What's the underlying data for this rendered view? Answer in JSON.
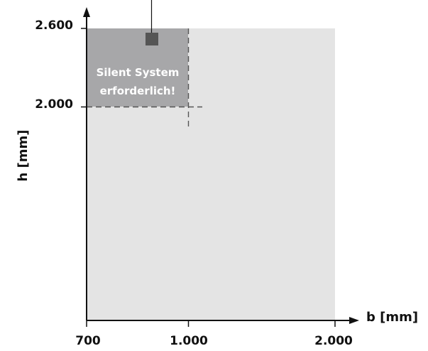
{
  "diagram": {
    "x_axis": {
      "label": "b [mm]",
      "ticks": [
        {
          "value": 700,
          "label": "700"
        },
        {
          "value": 1000,
          "label": "1.000"
        },
        {
          "value": 2000,
          "label": "2.000"
        }
      ]
    },
    "y_axis": {
      "label": "h [mm]",
      "ticks": [
        {
          "value": 2000,
          "label": "2.000"
        },
        {
          "value": 2600,
          "label": "2.600"
        }
      ]
    },
    "regions": {
      "full_range": {
        "b_max": 2000,
        "h_max": 2600,
        "color": "#e4e4e4"
      },
      "silent_zone": {
        "b_max": 1000,
        "h_min": 2000,
        "h_max": 2600,
        "color": "#a7a7a9"
      }
    },
    "note_lines": [
      "Silent System",
      "erforderlich!"
    ],
    "colors": {
      "axis": "#111111",
      "dashed": "#555555",
      "marker": "#555555",
      "note_text": "#ffffff"
    }
  }
}
